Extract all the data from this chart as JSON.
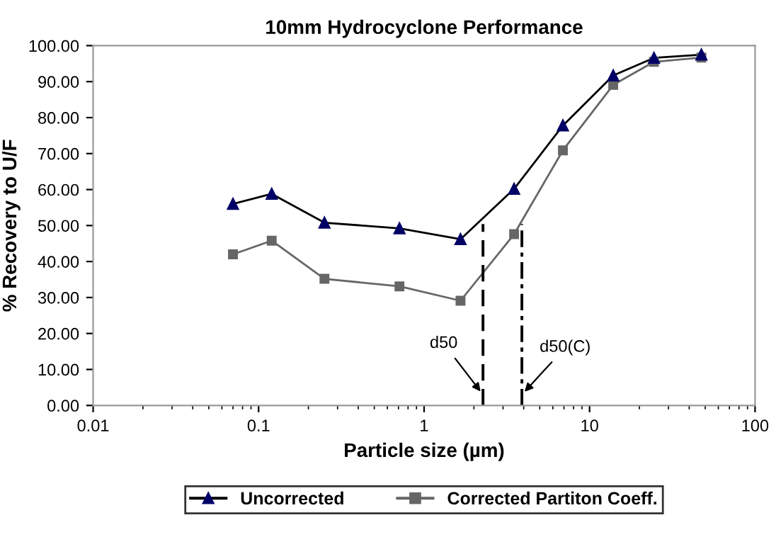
{
  "chart_data": {
    "type": "line",
    "title": "10mm Hydrocyclone Performance",
    "xlabel": "Particle size (µm)",
    "ylabel": "% Recovery to U/F",
    "log": "x",
    "xlim": [
      0.01,
      100
    ],
    "xticks": [
      0.01,
      0.1,
      1,
      10,
      100
    ],
    "ylim": [
      0,
      100
    ],
    "yticks": [
      {
        "value": 0,
        "label": "0.00"
      },
      {
        "value": 10,
        "label": "10.00"
      },
      {
        "value": 20,
        "label": "20.00"
      },
      {
        "value": 30,
        "label": "30.00"
      },
      {
        "value": 40,
        "label": "40.00"
      },
      {
        "value": 50,
        "label": "50.00"
      },
      {
        "value": 60,
        "label": "60.00"
      },
      {
        "value": 70,
        "label": "70.00"
      },
      {
        "value": 80,
        "label": "80.00"
      },
      {
        "value": 90,
        "label": "90.00"
      },
      {
        "value": 100,
        "label": "100.00"
      }
    ],
    "grid": false,
    "legend": "bottom",
    "series": [
      {
        "name": "Uncorrected",
        "color": "#000000",
        "marker": "triangle",
        "line_style": "solid",
        "x": [
          0.07,
          0.12,
          0.25,
          0.71,
          1.66,
          3.5,
          6.9,
          13.9,
          24.5,
          47.4
        ],
        "values": [
          56,
          58.8,
          50.8,
          49.2,
          46.2,
          60.2,
          77.8,
          91.7,
          96.6,
          97.5
        ]
      },
      {
        "name": "Corrected Partiton Coeff.",
        "color": "#666666",
        "marker": "square",
        "line_style": "solid",
        "x": [
          0.07,
          0.12,
          0.25,
          0.71,
          1.66,
          3.5,
          6.9,
          13.9,
          24.5,
          47.4
        ],
        "values": [
          42,
          45.8,
          35.2,
          33.1,
          29.1,
          47.6,
          70.9,
          89.1,
          95.5,
          96.7
        ]
      },
      {
        "color": "#000000",
        "marker": "none",
        "line_style": "dashed",
        "x": [
          2.27,
          2.27
        ],
        "values": [
          0,
          50.4
        ]
      },
      {
        "color": "#000000",
        "marker": "none",
        "line_style": "dashdot",
        "x": [
          3.9,
          3.9
        ],
        "values": [
          0,
          50.4
        ]
      }
    ],
    "annotations": [
      {
        "text": "d50",
        "x": 2.27,
        "y": 3
      },
      {
        "text": "d50(C)",
        "x": 3.9,
        "y": 3
      }
    ]
  }
}
